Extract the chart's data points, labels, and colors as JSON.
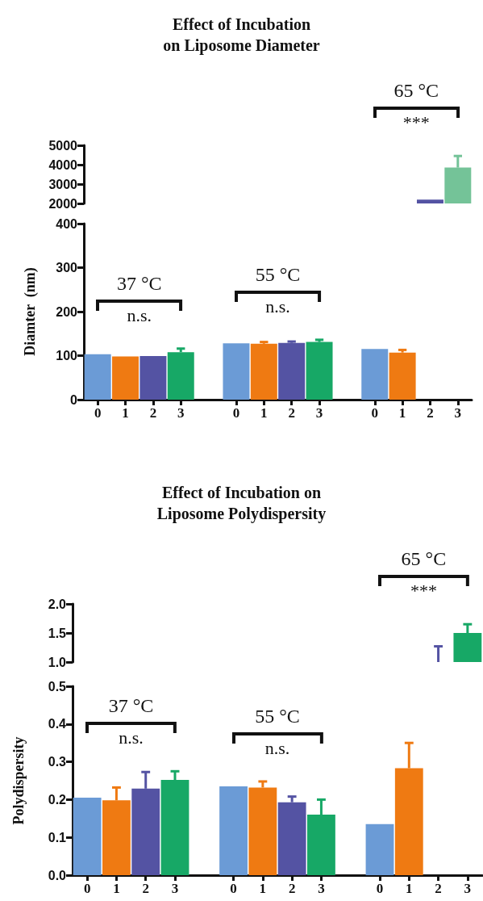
{
  "chart_data": [
    {
      "type": "bar",
      "title": "Effect of Incubation\non Liposome Diameter",
      "categories": [
        "0",
        "1",
        "2",
        "3",
        null,
        "0",
        "1",
        "2",
        "3",
        null,
        "0",
        "1",
        "2",
        "3"
      ],
      "values": [
        null,
        null,
        null,
        null,
        null,
        null,
        null,
        null,
        null,
        null,
        null,
        null,
        2200,
        3850
      ],
      "errors": [
        null,
        null,
        null,
        null,
        null,
        null,
        null,
        null,
        null,
        null,
        null,
        null,
        null,
        [
          3850,
          4450
        ]
      ],
      "colors": [
        "#6b9bd6",
        "#ef7a12",
        "#5453a3",
        "#17a866",
        "#ffffff",
        "#6b9bd6",
        "#ef7a12",
        "#5453a3",
        "#17a866",
        "#ffffff",
        "#6b9bd6",
        "#ef7a12",
        "#5453a3",
        "#74c398"
      ],
      "ylim": [
        2000,
        5000
      ],
      "yticks": [
        2000,
        3000,
        4000,
        5000
      ],
      "tick_labels": "y",
      "annotations": [
        "65 °C",
        "***"
      ]
    },
    {
      "type": "bar",
      "ylabel": "Diamter  (nm)",
      "categories": [
        "0",
        "1",
        "2",
        "3",
        null,
        "0",
        "1",
        "2",
        "3",
        null,
        "0",
        "1",
        "2",
        "3"
      ],
      "values": [
        103,
        98,
        99,
        108,
        null,
        128,
        127,
        129,
        131,
        null,
        115,
        107,
        null,
        null
      ],
      "errors": [
        null,
        null,
        null,
        [
          108,
          116
        ],
        null,
        null,
        [
          127,
          131
        ],
        [
          129,
          132
        ],
        [
          131,
          136
        ],
        null,
        null,
        [
          107,
          113
        ],
        null,
        null
      ],
      "colors": [
        "#6b9bd6",
        "#ef7a12",
        "#5453a3",
        "#17a866",
        "#ffffff",
        "#6b9bd6",
        "#ef7a12",
        "#5453a3",
        "#17a866",
        "#ffffff",
        "#6b9bd6",
        "#ef7a12",
        "#5453a3",
        "#74c398"
      ],
      "ylim": [
        0,
        400
      ],
      "yticks": [
        0,
        100,
        200,
        300,
        400
      ],
      "annotations": [
        "37 °C",
        "n.s.",
        "55 °C",
        "n.s."
      ]
    },
    {
      "type": "bar",
      "title": "Effect of Incubation on\nLiposome Polydispersity",
      "categories": [
        "0",
        "1",
        "2",
        "3",
        null,
        "0",
        "1",
        "2",
        "3",
        null,
        "0",
        "1",
        "2",
        "3"
      ],
      "values": [
        null,
        null,
        null,
        null,
        null,
        null,
        null,
        null,
        null,
        null,
        null,
        null,
        1.0,
        1.5
      ],
      "errors": [
        null,
        null,
        null,
        null,
        null,
        null,
        null,
        null,
        null,
        null,
        null,
        null,
        [
          1.0,
          1.27
        ],
        [
          1.5,
          1.65
        ]
      ],
      "colors": [
        "#6b9bd6",
        "#ef7a12",
        "#5453a3",
        "#17a866",
        "#ffffff",
        "#6b9bd6",
        "#ef7a12",
        "#5453a3",
        "#17a866",
        "#ffffff",
        "#6b9bd6",
        "#ef7a12",
        "#5453a3",
        "#17a866"
      ],
      "ylim": [
        1.0,
        2.0
      ],
      "yticks": [
        {
          "value": 1,
          "label": "1.0"
        },
        1.5,
        {
          "value": 2,
          "label": "2.0"
        }
      ],
      "tick_labels": "y",
      "annotations": [
        "65 °C",
        "***"
      ]
    },
    {
      "type": "bar",
      "ylabel": "Polydispersity",
      "categories": [
        "0",
        "1",
        "2",
        "3",
        null,
        "0",
        "1",
        "2",
        "3",
        null,
        "0",
        "1",
        "2",
        "3"
      ],
      "values": [
        0.205,
        0.198,
        0.229,
        0.252,
        null,
        0.235,
        0.232,
        0.193,
        0.16,
        null,
        0.135,
        0.283,
        null,
        null
      ],
      "errors": [
        null,
        [
          0.198,
          0.232
        ],
        [
          0.229,
          0.273
        ],
        [
          0.252,
          0.275
        ],
        null,
        null,
        [
          0.232,
          0.248
        ],
        [
          0.193,
          0.208
        ],
        [
          0.16,
          0.2
        ],
        null,
        null,
        [
          0.283,
          0.35
        ],
        null,
        null
      ],
      "colors": [
        "#6b9bd6",
        "#ef7a12",
        "#5453a3",
        "#17a866",
        "#ffffff",
        "#6b9bd6",
        "#ef7a12",
        "#5453a3",
        "#17a866",
        "#ffffff",
        "#6b9bd6",
        "#ef7a12",
        "#5453a3",
        "#17a866"
      ],
      "ylim": [
        0,
        0.5
      ],
      "yticks": [
        {
          "value": 0,
          "label": "0.0"
        },
        0.1,
        0.2,
        0.3,
        0.4,
        0.5
      ],
      "annotations": [
        "37 °C",
        "n.s.",
        "55 °C",
        "n.s."
      ]
    }
  ]
}
